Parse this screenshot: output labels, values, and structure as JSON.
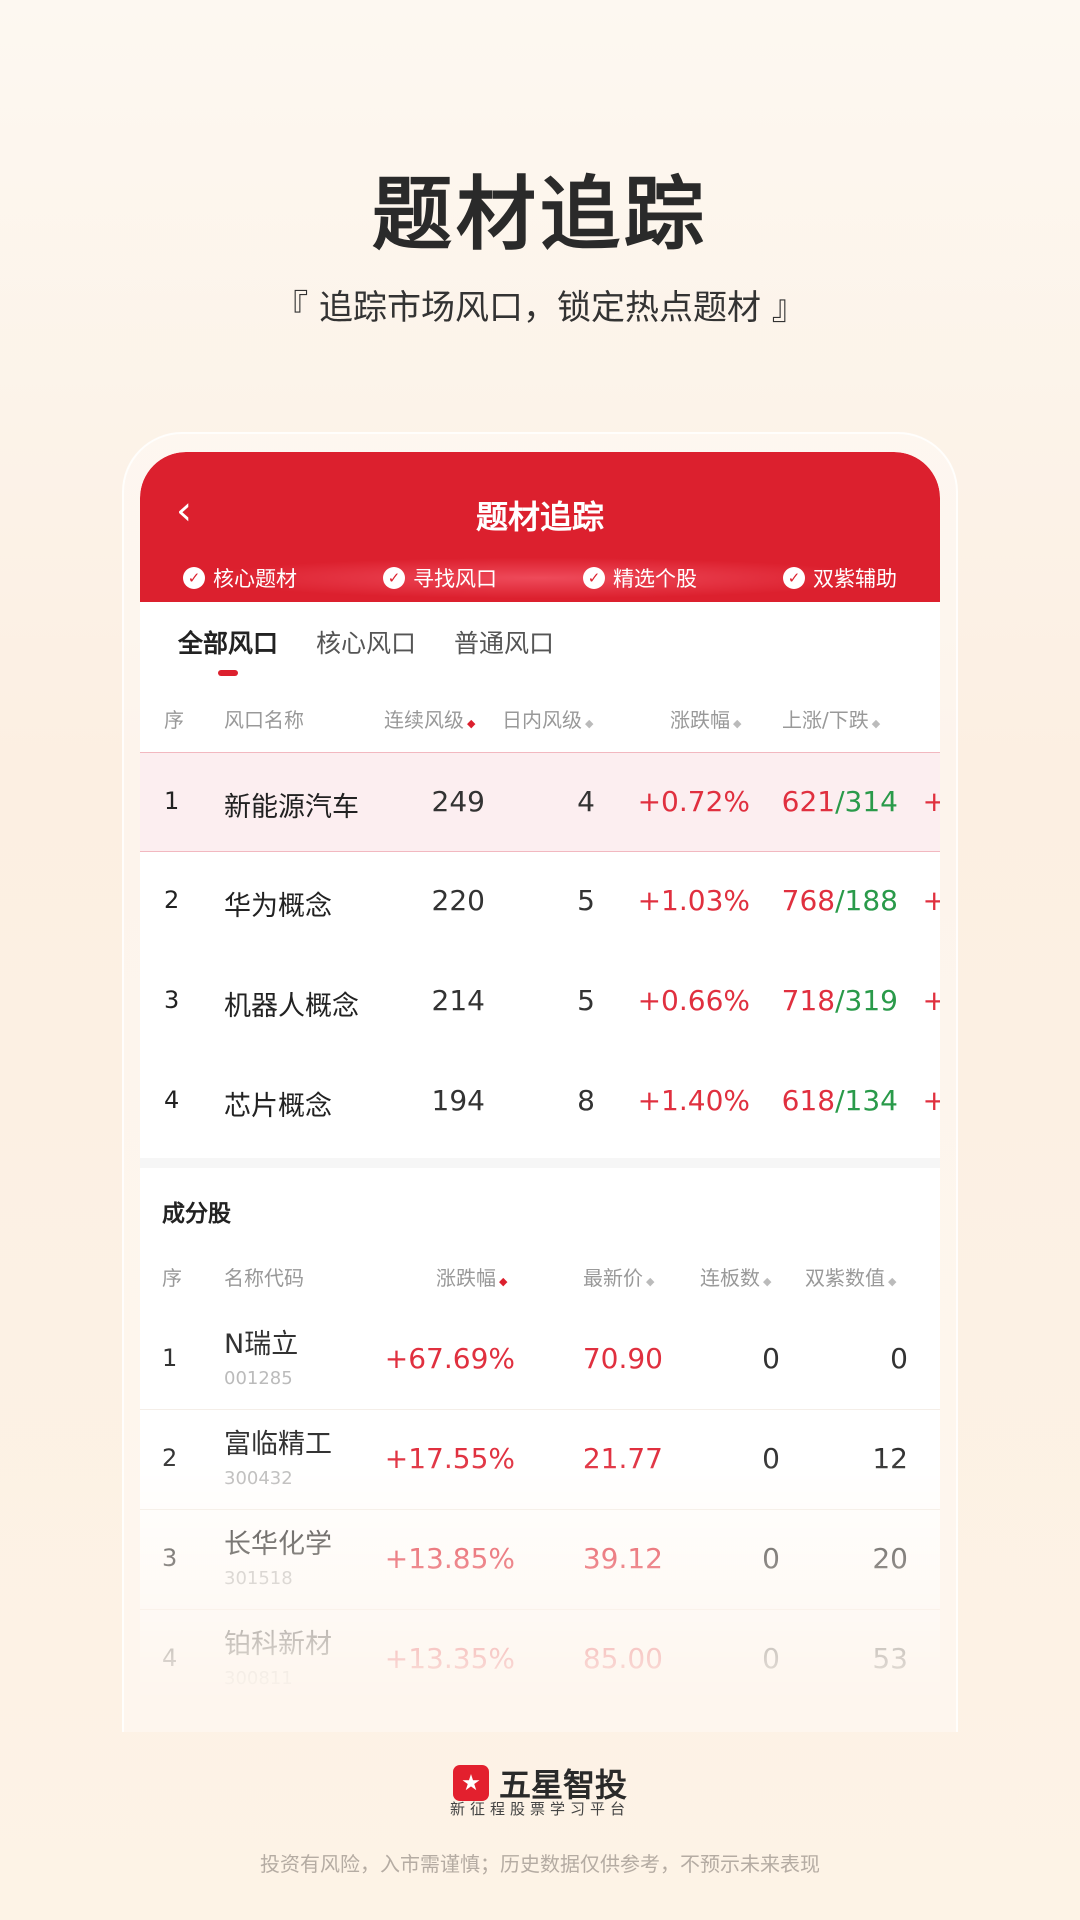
{
  "hero": {
    "title": "题材追踪",
    "subtitle": "『 追踪市场风口，锁定热点题材 』"
  },
  "app": {
    "title": "题材追踪",
    "back_icon": "chevron-left-icon",
    "accent": "#dc202e",
    "up_color": "#e0303f",
    "down_color": "#2a9a4a",
    "features": [
      "核心题材",
      "寻找风口",
      "精选个股",
      "双紫辅助"
    ],
    "tabs": [
      "全部风口",
      "核心风口",
      "普通风口"
    ],
    "theme_headers": [
      "序",
      "风口名称",
      "连续风级",
      "日内风级",
      "涨跌幅",
      "上涨/下跌"
    ],
    "themes": [
      {
        "idx": "1",
        "name": "新能源汽车",
        "streak": "249",
        "intraday": "4",
        "change": "+0.72%",
        "up": "621",
        "down": "314"
      },
      {
        "idx": "2",
        "name": "华为概念",
        "streak": "220",
        "intraday": "5",
        "change": "+1.03%",
        "up": "768",
        "down": "188"
      },
      {
        "idx": "3",
        "name": "机器人概念",
        "streak": "214",
        "intraday": "5",
        "change": "+0.66%",
        "up": "718",
        "down": "319"
      },
      {
        "idx": "4",
        "name": "芯片概念",
        "streak": "194",
        "intraday": "8",
        "change": "+1.40%",
        "up": "618",
        "down": "134"
      }
    ],
    "section_title": "成分股",
    "stock_headers": [
      "序",
      "名称代码",
      "涨跌幅",
      "最新价",
      "连板数",
      "双紫数值"
    ],
    "stocks": [
      {
        "idx": "1",
        "name": "N瑞立",
        "code": "001285",
        "change": "+67.69%",
        "price": "70.90",
        "boards": "0",
        "purple": "0"
      },
      {
        "idx": "2",
        "name": "富临精工",
        "code": "300432",
        "change": "+17.55%",
        "price": "21.77",
        "boards": "0",
        "purple": "12"
      },
      {
        "idx": "3",
        "name": "长华化学",
        "code": "301518",
        "change": "+13.85%",
        "price": "39.12",
        "boards": "0",
        "purple": "20"
      },
      {
        "idx": "4",
        "name": "铂科新材",
        "code": "300811",
        "change": "+13.35%",
        "price": "85.00",
        "boards": "0",
        "purple": "53"
      }
    ]
  },
  "footer": {
    "brand": "五星智投",
    "slogan": "新征程股票学习平台",
    "disclaimer": "投资有风险，入市需谨慎；历史数据仅供参考，不预示未来表现"
  }
}
